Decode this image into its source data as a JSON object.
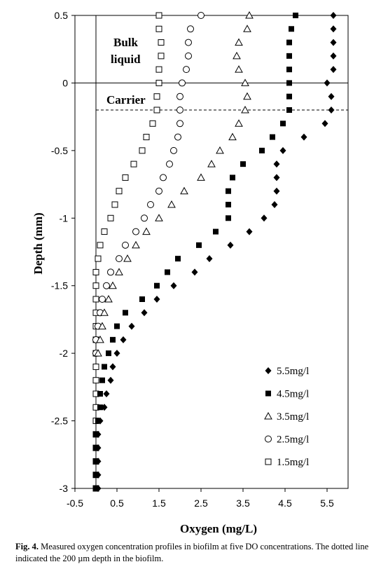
{
  "chart_data": {
    "type": "scatter",
    "title": "",
    "xlabel": "Oxygen   (mg/L)",
    "ylabel": "Depth  (mm)",
    "xlim": [
      -0.5,
      6
    ],
    "ylim": [
      -3,
      0.5
    ],
    "xticks": [
      -0.5,
      0.5,
      1.5,
      2.5,
      3.5,
      4.5,
      5.5
    ],
    "yticks": [
      0.5,
      0,
      -0.5,
      -1,
      -1.5,
      -2,
      -2.5,
      -3
    ],
    "grid": false,
    "legend_position": "bottom-right",
    "annotations": [
      "Bulk",
      "liquid",
      "Carrier"
    ],
    "reference_lines": {
      "vertical_x": 0,
      "horizontal_solid_y": 0,
      "horizontal_dashed_y": -0.2
    },
    "series": [
      {
        "name": "5.5mg/l",
        "marker": "diamond",
        "y": [
          0.5,
          0.4,
          0.3,
          0.2,
          0.1,
          0,
          -0.1,
          -0.2,
          -0.3,
          -0.4,
          -0.5,
          -0.6,
          -0.7,
          -0.8,
          -0.9,
          -1,
          -1.1,
          -1.2,
          -1.3,
          -1.4,
          -1.5,
          -1.6,
          -1.7,
          -1.8,
          -1.9,
          -2,
          -2.1,
          -2.2,
          -2.3,
          -2.4,
          -2.5,
          -2.6,
          -2.7,
          -2.8,
          -2.9,
          -3
        ],
        "x": [
          5.65,
          5.65,
          5.65,
          5.65,
          5.65,
          5.5,
          5.6,
          5.6,
          5.45,
          4.95,
          4.45,
          4.3,
          4.3,
          4.3,
          4.25,
          4.0,
          3.65,
          3.2,
          2.7,
          2.35,
          1.85,
          1.45,
          1.15,
          0.85,
          0.65,
          0.5,
          0.4,
          0.35,
          0.25,
          0.2,
          0.1,
          0.05,
          0.05,
          0.05,
          0.05,
          0.05
        ]
      },
      {
        "name": "4.5mg/l",
        "marker": "filled-square",
        "y": [
          0.5,
          0.4,
          0.3,
          0.2,
          0.1,
          0,
          -0.1,
          -0.2,
          -0.3,
          -0.4,
          -0.5,
          -0.6,
          -0.7,
          -0.8,
          -0.9,
          -1,
          -1.1,
          -1.2,
          -1.3,
          -1.4,
          -1.5,
          -1.6,
          -1.7,
          -1.8,
          -1.9,
          -2,
          -2.1,
          -2.2,
          -2.3,
          -2.4,
          -2.5,
          -2.6,
          -2.7,
          -2.8,
          -2.9,
          -3
        ],
        "x": [
          4.75,
          4.65,
          4.6,
          4.6,
          4.6,
          4.6,
          4.6,
          4.6,
          4.45,
          4.2,
          3.95,
          3.5,
          3.25,
          3.15,
          3.15,
          3.15,
          2.85,
          2.45,
          1.95,
          1.7,
          1.45,
          1.1,
          0.7,
          0.5,
          0.4,
          0.3,
          0.2,
          0.15,
          0.1,
          0.1,
          0.05,
          0.0,
          0.0,
          0.0,
          0.0,
          0.0
        ]
      },
      {
        "name": "3.5mg/l",
        "marker": "open-triangle",
        "y": [
          0.5,
          0.4,
          0.3,
          0.2,
          0.1,
          0,
          -0.1,
          -0.2,
          -0.3,
          -0.4,
          -0.5,
          -0.6,
          -0.7,
          -0.8,
          -0.9,
          -1,
          -1.1,
          -1.2,
          -1.3,
          -1.4,
          -1.5,
          -1.6,
          -1.7,
          -1.8,
          -1.9,
          -2
        ],
        "x": [
          3.65,
          3.6,
          3.4,
          3.35,
          3.4,
          3.55,
          3.6,
          3.55,
          3.4,
          3.25,
          2.95,
          2.75,
          2.5,
          2.1,
          1.8,
          1.5,
          1.2,
          0.95,
          0.75,
          0.55,
          0.4,
          0.3,
          0.2,
          0.15,
          0.1,
          0.05
        ]
      },
      {
        "name": "2.5mg/l",
        "marker": "open-circle",
        "y": [
          0.5,
          0.4,
          0.3,
          0.2,
          0.1,
          0,
          -0.1,
          -0.2,
          -0.3,
          -0.4,
          -0.5,
          -0.6,
          -0.7,
          -0.8,
          -0.9,
          -1,
          -1.1,
          -1.2,
          -1.3,
          -1.4,
          -1.5,
          -1.6,
          -1.7,
          -1.8,
          -1.9,
          -2
        ],
        "x": [
          2.5,
          2.25,
          2.2,
          2.2,
          2.15,
          2.05,
          2.0,
          2.0,
          2.0,
          1.95,
          1.85,
          1.75,
          1.6,
          1.5,
          1.3,
          1.15,
          0.95,
          0.7,
          0.55,
          0.35,
          0.25,
          0.15,
          0.1,
          0.05,
          0.0,
          0.0
        ]
      },
      {
        "name": "1.5mg/l",
        "marker": "open-square",
        "y": [
          0.5,
          0.4,
          0.3,
          0.2,
          0.1,
          0,
          -0.1,
          -0.2,
          -0.3,
          -0.4,
          -0.5,
          -0.6,
          -0.7,
          -0.8,
          -0.9,
          -1,
          -1.1,
          -1.2,
          -1.3,
          -1.4,
          -1.5,
          -1.6,
          -1.7,
          -1.8,
          -1.9,
          -2,
          -2.1,
          -2.2,
          -2.3,
          -2.4,
          -2.5,
          -2.6,
          -2.7,
          -2.8,
          -2.9,
          -3
        ],
        "x": [
          1.5,
          1.5,
          1.55,
          1.55,
          1.5,
          1.5,
          1.45,
          1.45,
          1.35,
          1.2,
          1.1,
          0.9,
          0.7,
          0.55,
          0.45,
          0.35,
          0.2,
          0.1,
          0.05,
          0.0,
          0.0,
          0.0,
          0.0,
          0.0,
          0.0,
          0.0,
          0.0,
          0.0,
          0.0,
          0.0,
          0.0,
          0.0,
          0.0,
          0.0,
          0.0,
          0.0
        ]
      }
    ]
  },
  "caption": {
    "label": "Fig. 4.",
    "text": " Measured oxygen concentration profiles in biofilm at five DO concentrations. The dotted line indicated the 200 µm depth in the biofilm."
  }
}
